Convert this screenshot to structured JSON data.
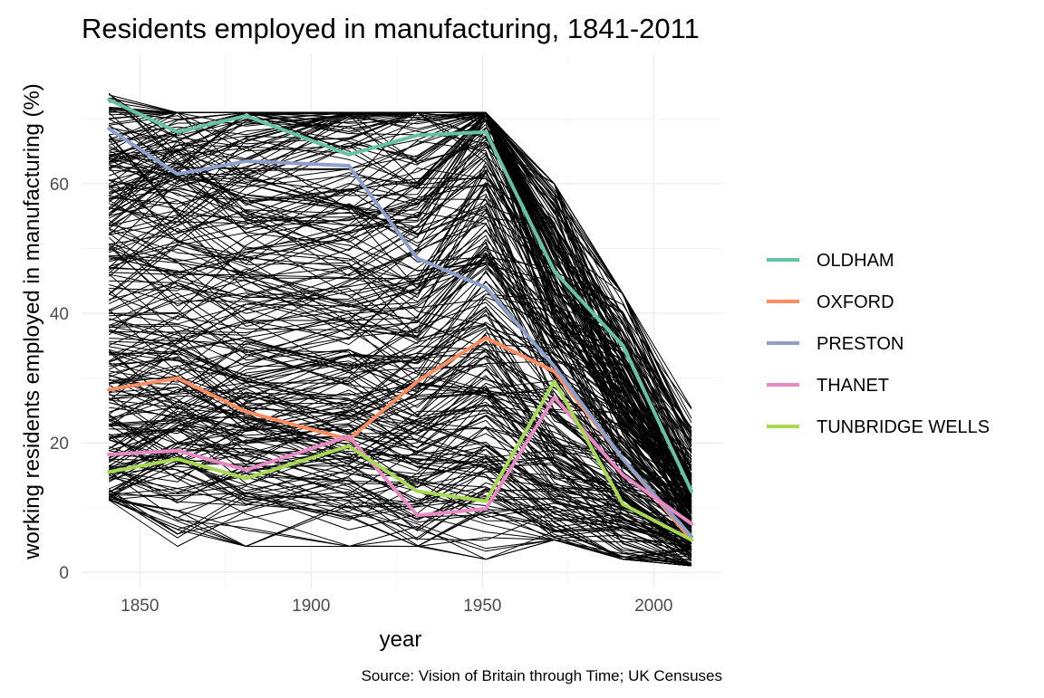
{
  "chart_data": {
    "type": "line",
    "title": "Residents employed in manufacturing, 1841-2011",
    "xlabel": "year",
    "ylabel": "working residents employed in manufacturing (%)",
    "caption": "Source: Vision of Britain through Time; UK Censuses",
    "x": [
      1841,
      1861,
      1881,
      1911,
      1931,
      1951,
      1971,
      1991,
      2011
    ],
    "xlim": [
      1833,
      2020
    ],
    "ylim": [
      -2.5,
      80
    ],
    "x_ticks": [
      1850,
      1900,
      1950,
      2000
    ],
    "x_tick_labels": [
      "1850",
      "1900",
      "1950",
      "2000"
    ],
    "y_ticks": [
      0,
      20,
      40,
      60
    ],
    "y_tick_labels": [
      "0",
      "20",
      "40",
      "60"
    ],
    "grid": true,
    "legend_position": "right",
    "background_series": {
      "description_count": 300,
      "color": "#000000"
    },
    "series": [
      {
        "name": "OLDHAM",
        "color": "#66C2A5",
        "values": [
          73.0,
          68.0,
          70.5,
          64.5,
          67.5,
          68.0,
          46.5,
          35.0,
          12.5
        ]
      },
      {
        "name": "OXFORD",
        "color": "#FC8D62",
        "values": [
          28.2,
          30.0,
          24.8,
          20.5,
          29.5,
          36.2,
          31.0,
          17.5,
          5.0
        ]
      },
      {
        "name": "PRESTON",
        "color": "#8DA0CB",
        "values": [
          68.5,
          61.5,
          63.5,
          62.8,
          48.5,
          44.0,
          31.8,
          17.5,
          5.5
        ]
      },
      {
        "name": "THANET",
        "color": "#E78AC3",
        "values": [
          18.2,
          18.8,
          15.8,
          21.0,
          8.8,
          9.8,
          27.0,
          15.0,
          7.5
        ]
      },
      {
        "name": "TUNBRIDGE WELLS",
        "color": "#A6D854",
        "values": [
          15.5,
          17.5,
          14.5,
          19.5,
          12.5,
          11.0,
          29.5,
          10.5,
          5.0
        ]
      }
    ]
  }
}
